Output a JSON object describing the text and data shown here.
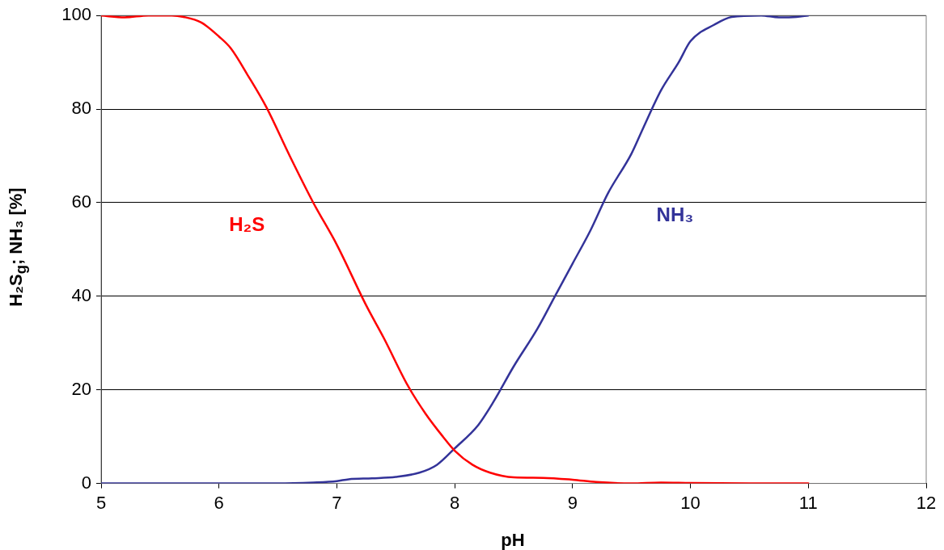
{
  "chart_data": {
    "type": "line",
    "xlabel": "pH",
    "ylabel": "H₂S$_{g}$; NH₃ [%]",
    "xlim": [
      5,
      12
    ],
    "xticks": [
      5,
      6,
      7,
      8,
      9,
      10,
      11,
      12
    ],
    "ylim": [
      0,
      100
    ],
    "yticks": [
      0,
      20,
      40,
      60,
      80,
      100
    ],
    "grid": "y",
    "legend": false,
    "marker": "none",
    "line_style": "solid",
    "series": [
      {
        "name": "H₂S",
        "color": "#ff0000",
        "x": [
          5.0,
          5.2,
          5.4,
          5.6,
          5.7,
          5.85,
          6.0,
          6.1,
          6.25,
          6.4,
          6.6,
          6.8,
          7.0,
          7.25,
          7.4,
          7.6,
          7.75,
          7.9,
          8.0,
          8.15,
          8.3,
          8.5,
          8.75,
          9.0,
          9.2,
          9.5,
          9.75,
          10.0,
          10.5,
          11.0
        ],
        "values": [
          100,
          99.6,
          100,
          100,
          99.7,
          98.5,
          95.5,
          93,
          87,
          80.5,
          70,
          60,
          51,
          38,
          31,
          21,
          15,
          10,
          7,
          4,
          2.3,
          1.3,
          1.2,
          0.8,
          0.3,
          0,
          0.2,
          0.1,
          0,
          0
        ]
      },
      {
        "name": "NH₃",
        "color": "#333399",
        "x": [
          5.0,
          6.0,
          6.3,
          6.5,
          6.8,
          7.0,
          7.1,
          7.3,
          7.5,
          7.7,
          7.85,
          8.0,
          8.2,
          8.33,
          8.5,
          8.7,
          8.85,
          9.0,
          9.15,
          9.3,
          9.5,
          9.6,
          9.75,
          9.9,
          10.0,
          10.2,
          10.35,
          10.6,
          10.75,
          10.9,
          11.0
        ],
        "values": [
          0,
          0,
          0,
          0,
          0.2,
          0.5,
          0.9,
          1.1,
          1.4,
          2.3,
          4,
          7.5,
          12.5,
          17.5,
          25,
          33,
          40,
          47,
          54,
          62,
          70.5,
          76,
          84,
          90,
          94.5,
          98,
          99.7,
          100,
          99.6,
          99.7,
          100
        ]
      }
    ]
  }
}
